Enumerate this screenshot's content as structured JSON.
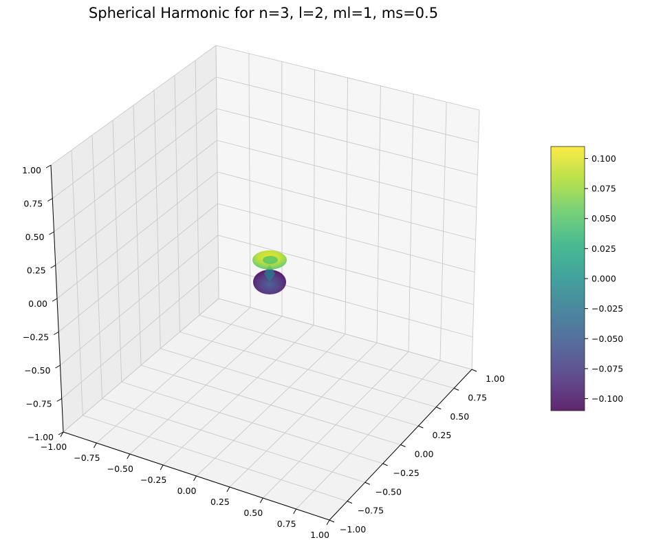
{
  "chart_data": {
    "type": "surface3d",
    "title": "Spherical Harmonic for n=3, l=2, ml=1, ms=0.5",
    "xlabel": "",
    "ylabel": "",
    "zlabel": "",
    "x_ticks": [
      "−1.00",
      "−0.75",
      "−0.50",
      "−0.25",
      "0.00",
      "0.25",
      "0.50",
      "0.75",
      "1.00"
    ],
    "y_ticks": [
      "−1.00",
      "−0.75",
      "−0.50",
      "−0.25",
      "0.00",
      "0.25",
      "0.50",
      "0.75",
      "1.00"
    ],
    "z_ticks": [
      "−1.00",
      "−0.75",
      "−0.50",
      "−0.25",
      "0.00",
      "0.25",
      "0.50",
      "0.75",
      "1.00"
    ],
    "xlim": [
      -1,
      1
    ],
    "ylim": [
      -1,
      1
    ],
    "zlim": [
      -1,
      1
    ],
    "grid": true,
    "surface": {
      "shape": "two stacked lobes (d-orbital), centered near origin",
      "upper_lobe_value": 0.1,
      "lower_lobe_value": -0.1,
      "x_extent": [
        -0.09,
        0.09
      ],
      "y_extent": [
        -0.09,
        0.09
      ],
      "z_extent": [
        -0.15,
        0.15
      ]
    },
    "colorbar": {
      "colormap": "viridis",
      "vmin": -0.11,
      "vmax": 0.11,
      "ticks": [
        0.1,
        0.075,
        0.05,
        0.025,
        0.0,
        -0.025,
        -0.05,
        -0.075,
        -0.1
      ],
      "tick_labels": [
        "0.100",
        "0.075",
        "0.050",
        "0.025",
        "0.000",
        "−0.025",
        "−0.050",
        "−0.075",
        "−0.100"
      ]
    }
  }
}
